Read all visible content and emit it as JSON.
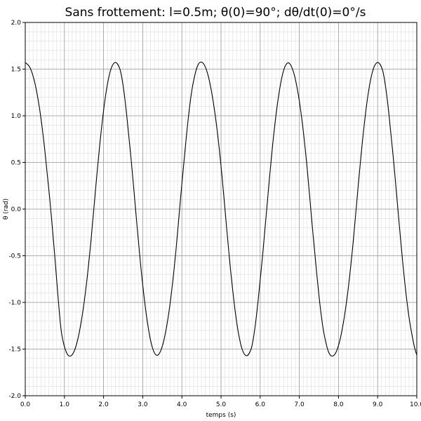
{
  "chart_data": {
    "type": "line",
    "title": "Sans frottement: l=0.5m; θ(0)=90°; dθ/dt(0)=0°/s",
    "xlabel": "temps (s)",
    "ylabel": "θ (rad)",
    "xlim": [
      0,
      10
    ],
    "ylim": [
      -2,
      2
    ],
    "x_ticks": [
      0,
      1,
      2,
      3,
      4,
      5,
      6,
      7,
      8,
      9,
      10
    ],
    "x_tick_labels": [
      "0.0",
      "1.0",
      "2.0",
      "3.0",
      "4.0",
      "5.0",
      "6.0",
      "7.0",
      "8.0",
      "9.0",
      "10.0"
    ],
    "y_ticks": [
      -2,
      -1.5,
      -1,
      -0.5,
      0,
      0.5,
      1,
      1.5,
      2
    ],
    "y_tick_labels": [
      "-2.0",
      "-1.5",
      "-1.0",
      "-0.5",
      "0.0",
      "0.5",
      "1.0",
      "1.5",
      "2.0"
    ],
    "grid": true,
    "line_color": "#000000",
    "series": [
      {
        "x": [
          0,
          0.125,
          0.25,
          0.375,
          0.5,
          0.625,
          0.75,
          0.8375,
          0.925,
          1.05,
          1.175,
          1.3,
          1.425,
          1.55,
          1.675,
          1.8,
          1.925,
          2.05,
          2.175,
          2.3,
          2.425,
          2.5125,
          2.6,
          2.725,
          2.85,
          2.975,
          3.1,
          3.225,
          3.35,
          3.475,
          3.6,
          3.725,
          3.85,
          3.975,
          4.1,
          4.1875,
          4.275,
          4.4,
          4.525,
          4.65,
          4.775,
          4.9,
          5.025,
          5.15,
          5.275,
          5.4,
          5.525,
          5.65,
          5.775,
          5.8625,
          5.95,
          6.075,
          6.2,
          6.325,
          6.45,
          6.575,
          6.7,
          6.825,
          6.95,
          7.075,
          7.2,
          7.325,
          7.45,
          7.5375,
          7.625,
          7.75,
          7.875,
          8.0,
          8.125,
          8.25,
          8.375,
          8.5,
          8.625,
          8.75,
          8.875,
          9.0,
          9.125,
          9.2125,
          9.3,
          9.425,
          9.55,
          9.675,
          9.8,
          9.925,
          10.0
        ],
        "y": [
          1.571,
          1.513,
          1.342,
          1.049,
          0.628,
          0.112,
          -0.484,
          -0.942,
          -1.322,
          -1.534,
          -1.57,
          -1.462,
          -1.217,
          -0.847,
          -0.354,
          0.233,
          0.779,
          1.212,
          1.482,
          1.571,
          1.489,
          1.283,
          0.97,
          0.437,
          -0.156,
          -0.714,
          -1.155,
          -1.45,
          -1.566,
          -1.501,
          -1.284,
          -0.927,
          -0.437,
          0.156,
          0.714,
          1.061,
          1.322,
          1.534,
          1.57,
          1.462,
          1.217,
          0.847,
          0.354,
          -0.233,
          -0.779,
          -1.212,
          -1.482,
          -1.571,
          -1.489,
          -1.283,
          -0.97,
          -0.437,
          0.156,
          0.714,
          1.155,
          1.45,
          1.566,
          1.501,
          1.284,
          0.927,
          0.437,
          -0.156,
          -0.714,
          -1.061,
          -1.322,
          -1.534,
          -1.57,
          -1.462,
          -1.217,
          -0.847,
          -0.354,
          0.233,
          0.779,
          1.212,
          1.482,
          1.571,
          1.489,
          1.283,
          0.97,
          0.437,
          -0.156,
          -0.714,
          -1.155,
          -1.45,
          -1.566
        ]
      }
    ]
  }
}
